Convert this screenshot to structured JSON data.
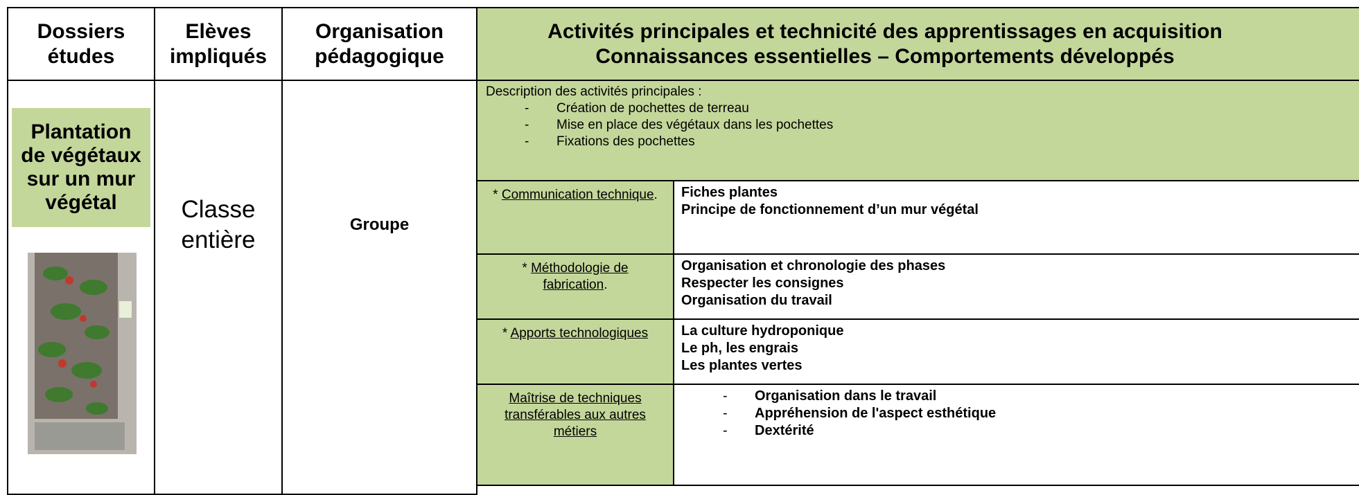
{
  "header": {
    "columns": [
      "Dossiers",
      "études",
      "Elèves",
      "impliqués",
      "Organisation",
      "pédagogique"
    ],
    "activities": [
      "Activités principales et technicité des apprentissages en acquisition",
      "Connaissances essentielles – Comportements développés"
    ]
  },
  "body": {
    "dossier": [
      "Plantation",
      "de végétaux",
      "sur un mur",
      "végétal"
    ],
    "eleves": [
      "Classe",
      "entière"
    ],
    "organisation": "Groupe",
    "description": {
      "title": "Description des activités principales :",
      "items": [
        "Création de pochettes de terreau",
        "Mise en place des végétaux dans les pochettes",
        "Fixations des pochettes"
      ]
    },
    "rows": [
      {
        "prefix": "*",
        "label": "Communication technique",
        "suffix": ".",
        "lines": [
          "Fiches plantes",
          "Principe de fonctionnement  d’un mur végétal"
        ]
      },
      {
        "prefix": "*",
        "label": "Méthodologie de fabrication",
        "suffix": ".",
        "lines": [
          "Organisation et chronologie des phases",
          "Respecter les consignes",
          "Organisation du travail"
        ]
      },
      {
        "prefix": "*",
        "label": "Apports technologiques",
        "lines": [
          "La culture hydroponique",
          "Le ph, les engrais",
          "Les plantes vertes"
        ]
      },
      {
        "label": "Maîtrise de techniques transférables aux autres métiers",
        "lines": [
          "Organisation dans le travail",
          "Appréhension de l'aspect esthétique",
          "Dextérité"
        ]
      }
    ]
  }
}
